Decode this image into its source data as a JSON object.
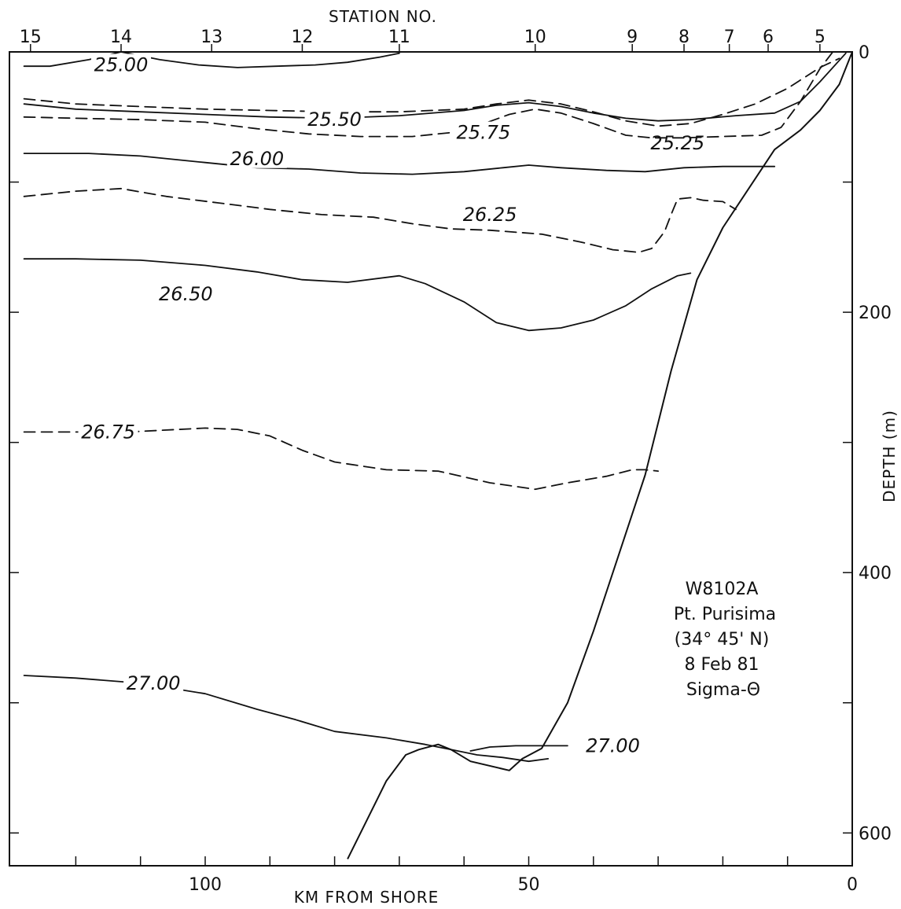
{
  "chart_data": {
    "type": "contour",
    "title_block": [
      "W8102A",
      "Pt. Purisima",
      "(34° 45' N)",
      "8 Feb 81",
      "Sigma-Θ"
    ],
    "top_axis_label": "STATION NO.",
    "xlabel": "KM FROM SHORE",
    "ylabel": "DEPTH (m)",
    "x_units": "km from shore",
    "y_units": "m",
    "xlim": [
      0,
      128
    ],
    "ylim": [
      0,
      630
    ],
    "x_reversed": true,
    "y_reversed": true,
    "x_ticks": [
      100,
      50,
      0
    ],
    "x_tick_labels": [
      "100",
      "50",
      "0"
    ],
    "y_ticks": [
      0,
      200,
      400,
      600
    ],
    "y_tick_labels": [
      "0",
      "200",
      "400",
      "600"
    ],
    "stations": [
      {
        "label": "15",
        "km": 127
      },
      {
        "label": "14",
        "km": 113
      },
      {
        "label": "13",
        "km": 99
      },
      {
        "label": "12",
        "km": 85
      },
      {
        "label": "11",
        "km": 70
      },
      {
        "label": "10",
        "km": 49
      },
      {
        "label": "9",
        "km": 34
      },
      {
        "label": "8",
        "km": 26
      },
      {
        "label": "7",
        "km": 19
      },
      {
        "label": "6",
        "km": 13
      },
      {
        "label": "5",
        "km": 5
      }
    ],
    "bottom_profile": [
      [
        0,
        0
      ],
      [
        2,
        25
      ],
      [
        5,
        45
      ],
      [
        8,
        60
      ],
      [
        12,
        75
      ],
      [
        16,
        105
      ],
      [
        20,
        135
      ],
      [
        24,
        175
      ],
      [
        28,
        245
      ],
      [
        32,
        325
      ],
      [
        36,
        385
      ],
      [
        40,
        445
      ],
      [
        44,
        500
      ],
      [
        48,
        535
      ],
      [
        51,
        543
      ],
      [
        53,
        552
      ],
      [
        59,
        545
      ],
      [
        62,
        536
      ],
      [
        64,
        532
      ],
      [
        67,
        536
      ],
      [
        69,
        540
      ],
      [
        72,
        560
      ],
      [
        75,
        590
      ],
      [
        78,
        620
      ]
    ],
    "contours": [
      {
        "label": "25.00",
        "style": "solid",
        "label_pos": [
          113,
          10
        ],
        "points": [
          [
            128,
            11
          ],
          [
            124,
            11
          ],
          [
            118,
            6
          ],
          [
            113,
            0
          ],
          [
            107,
            6
          ],
          [
            101,
            10
          ],
          [
            95,
            12
          ],
          [
            89,
            11
          ],
          [
            83,
            10
          ],
          [
            78,
            8
          ],
          [
            73,
            4
          ],
          [
            70,
            1
          ]
        ]
      },
      {
        "label": "25.25",
        "style": "dashed",
        "label_pos": [
          27,
          70
        ],
        "points": [
          [
            128,
            36
          ],
          [
            120,
            40
          ],
          [
            110,
            42
          ],
          [
            100,
            44
          ],
          [
            90,
            45
          ],
          [
            80,
            46
          ],
          [
            70,
            46
          ],
          [
            60,
            44
          ],
          [
            55,
            40
          ],
          [
            50,
            37
          ],
          [
            45,
            40
          ],
          [
            40,
            46
          ],
          [
            35,
            53
          ],
          [
            30,
            57
          ],
          [
            25,
            55
          ],
          [
            20,
            48
          ],
          [
            15,
            40
          ],
          [
            10,
            28
          ],
          [
            5,
            12
          ],
          [
            2,
            5
          ]
        ]
      },
      {
        "label": "25.50",
        "style": "solid",
        "label_pos": [
          80,
          52
        ],
        "points": [
          [
            128,
            40
          ],
          [
            120,
            44
          ],
          [
            110,
            46
          ],
          [
            100,
            48
          ],
          [
            90,
            50
          ],
          [
            80,
            51
          ],
          [
            70,
            49
          ],
          [
            60,
            45
          ],
          [
            55,
            41
          ],
          [
            50,
            39
          ],
          [
            45,
            42
          ],
          [
            40,
            47
          ],
          [
            35,
            51
          ],
          [
            30,
            53
          ],
          [
            25,
            52
          ],
          [
            18,
            49
          ],
          [
            12,
            47
          ],
          [
            8,
            38
          ],
          [
            5,
            23
          ],
          [
            1,
            1
          ]
        ]
      },
      {
        "label": "25.75",
        "style": "dashed",
        "label_pos": [
          57,
          62
        ],
        "points": [
          [
            128,
            50
          ],
          [
            120,
            51
          ],
          [
            110,
            52
          ],
          [
            100,
            54
          ],
          [
            92,
            59
          ],
          [
            84,
            63
          ],
          [
            76,
            65
          ],
          [
            68,
            65
          ],
          [
            62,
            62
          ],
          [
            58,
            57
          ],
          [
            53,
            48
          ],
          [
            49,
            44
          ],
          [
            45,
            47
          ],
          [
            40,
            55
          ],
          [
            35,
            64
          ],
          [
            31,
            66
          ],
          [
            26,
            66
          ],
          [
            20,
            65
          ],
          [
            14,
            64
          ],
          [
            11,
            58
          ],
          [
            8,
            38
          ],
          [
            5,
            13
          ],
          [
            3,
            0
          ]
        ]
      },
      {
        "label": "26.00",
        "style": "solid",
        "label_pos": [
          92,
          82
        ],
        "points": [
          [
            128,
            78
          ],
          [
            118,
            78
          ],
          [
            110,
            80
          ],
          [
            100,
            85
          ],
          [
            92,
            89
          ],
          [
            84,
            90
          ],
          [
            76,
            93
          ],
          [
            68,
            94
          ],
          [
            60,
            92
          ],
          [
            54,
            89
          ],
          [
            50,
            87
          ],
          [
            45,
            89
          ],
          [
            38,
            91
          ],
          [
            32,
            92
          ],
          [
            26,
            89
          ],
          [
            20,
            88
          ],
          [
            12,
            88
          ]
        ]
      },
      {
        "label": "26.25",
        "style": "dashed",
        "label_pos": [
          56,
          125
        ],
        "points": [
          [
            128,
            111
          ],
          [
            120,
            107
          ],
          [
            113,
            105
          ],
          [
            106,
            111
          ],
          [
            98,
            116
          ],
          [
            90,
            121
          ],
          [
            82,
            125
          ],
          [
            74,
            127
          ],
          [
            68,
            132
          ],
          [
            62,
            136
          ],
          [
            56,
            137
          ],
          [
            48,
            140
          ],
          [
            42,
            146
          ],
          [
            37,
            152
          ],
          [
            33,
            154
          ],
          [
            31,
            151
          ],
          [
            29,
            138
          ],
          [
            28,
            125
          ],
          [
            27,
            113
          ],
          [
            25,
            112
          ],
          [
            23,
            114
          ],
          [
            20,
            115
          ],
          [
            18,
            121
          ]
        ]
      },
      {
        "label": "26.50",
        "style": "solid",
        "label_pos": [
          103,
          186
        ],
        "points": [
          [
            128,
            159
          ],
          [
            120,
            159
          ],
          [
            110,
            160
          ],
          [
            100,
            164
          ],
          [
            92,
            169
          ],
          [
            85,
            175
          ],
          [
            78,
            177
          ],
          [
            70,
            172
          ],
          [
            66,
            178
          ],
          [
            60,
            192
          ],
          [
            55,
            208
          ],
          [
            50,
            214
          ],
          [
            45,
            212
          ],
          [
            40,
            206
          ],
          [
            35,
            195
          ],
          [
            31,
            182
          ],
          [
            27,
            172
          ],
          [
            25,
            170
          ]
        ]
      },
      {
        "label": "26.75",
        "style": "dashed",
        "label_pos": [
          115,
          292
        ],
        "points": [
          [
            128,
            292
          ],
          [
            120,
            292
          ],
          [
            112,
            292
          ],
          [
            100,
            289
          ],
          [
            95,
            290
          ],
          [
            90,
            295
          ],
          [
            85,
            306
          ],
          [
            80,
            315
          ],
          [
            72,
            321
          ],
          [
            64,
            322
          ],
          [
            56,
            331
          ],
          [
            49,
            336
          ],
          [
            44,
            331
          ],
          [
            38,
            326
          ],
          [
            34,
            321
          ],
          [
            32,
            321
          ],
          [
            30,
            322
          ]
        ]
      },
      {
        "label": "27.00",
        "style": "solid",
        "label_pos": [
          108,
          485
        ],
        "points": [
          [
            128,
            479
          ],
          [
            120,
            481
          ],
          [
            110,
            485
          ],
          [
            100,
            493
          ],
          [
            92,
            505
          ],
          [
            86,
            513
          ],
          [
            80,
            522
          ],
          [
            72,
            527
          ],
          [
            66,
            532
          ],
          [
            62,
            536
          ],
          [
            58,
            540
          ],
          [
            54,
            542
          ],
          [
            50,
            545
          ],
          [
            47,
            543
          ]
        ]
      },
      {
        "label": "27.00",
        "style": "solid",
        "label_pos": [
          37,
          533
        ],
        "points": [
          [
            59,
            537
          ],
          [
            56,
            534
          ],
          [
            52,
            533
          ],
          [
            47,
            533
          ],
          [
            44,
            533
          ]
        ]
      }
    ],
    "grid": false
  }
}
